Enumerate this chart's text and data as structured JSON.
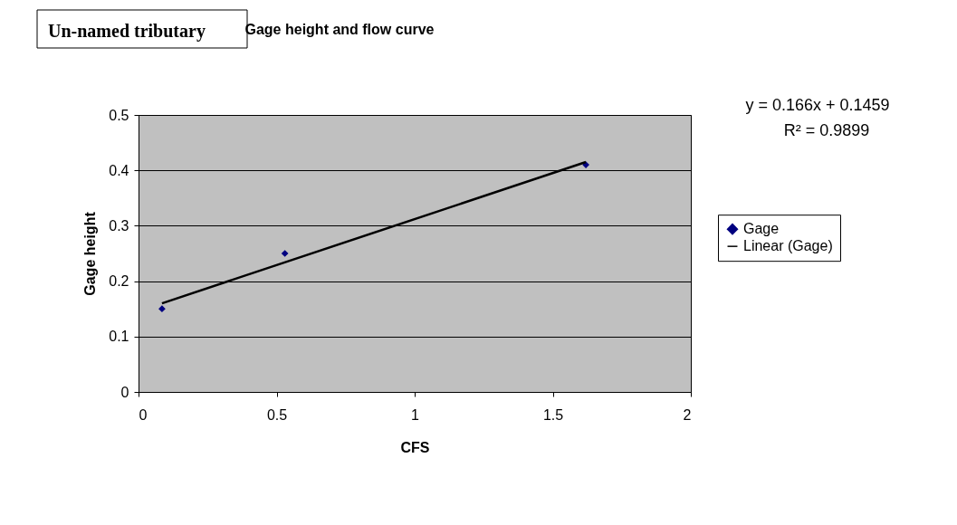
{
  "chart_data": {
    "type": "scatter",
    "title": "Gage height and flow curve",
    "xlabel": "CFS",
    "ylabel": "Gage height",
    "annotations": [
      "Un-named tributary",
      "y = 0.166x + 0.1459",
      "R² = 0.9899"
    ],
    "xlim": [
      0,
      2
    ],
    "xticks": [
      0,
      0.5,
      1,
      1.5,
      2
    ],
    "ylim": [
      0,
      0.5
    ],
    "yticks": [
      0,
      0.1,
      0.2,
      0.3,
      0.4,
      0.5
    ],
    "grid": "y",
    "legend": "right",
    "series": [
      {
        "name": "Gage",
        "marker": "diamond",
        "color": "#000080",
        "x": [
          0.085,
          0.53,
          1.62
        ],
        "values": [
          0.15,
          0.25,
          0.41
        ]
      },
      {
        "name": "Linear (Gage)",
        "type": "line",
        "marker": "none",
        "color": "#000000",
        "line_style": "solid",
        "x": [
          0.085,
          1.62
        ],
        "values": [
          0.16,
          0.415
        ]
      }
    ]
  }
}
